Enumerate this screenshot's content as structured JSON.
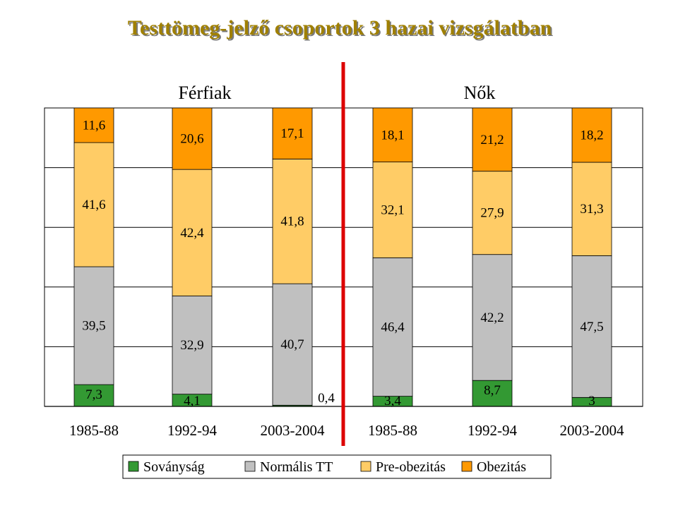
{
  "chart_data": {
    "type": "bar",
    "stacked": true,
    "title": "Testtömeg-jelző csoportok 3 hazai vizsgálatban",
    "groups": [
      "Férfiak",
      "Nők"
    ],
    "categories": [
      "1985-88",
      "1992-94",
      "2003-2004",
      "1985-88",
      "1992-94",
      "2003-2004"
    ],
    "series": [
      {
        "name": "Soványság",
        "color": "#339933",
        "values": [
          7.3,
          4.1,
          0.4,
          3.4,
          8.7,
          3
        ]
      },
      {
        "name": "Normális TT",
        "color": "#c0c0c0",
        "values": [
          39.5,
          32.9,
          40.7,
          46.4,
          42.2,
          47.5
        ]
      },
      {
        "name": "Pre-obezitás",
        "color": "#ffcc66",
        "values": [
          41.6,
          42.4,
          41.8,
          32.1,
          27.9,
          31.3
        ]
      },
      {
        "name": "Obezitás",
        "color": "#ff9900",
        "values": [
          11.6,
          20.6,
          17.1,
          18.1,
          21.2,
          18.2
        ]
      }
    ],
    "value_labels": [
      [
        "7,3",
        "4,1",
        "0,4",
        "3,4",
        "8,7",
        "3"
      ],
      [
        "39,5",
        "32,9",
        "40,7",
        "46,4",
        "42,2",
        "47,5"
      ],
      [
        "41,6",
        "42,4",
        "41,8",
        "32,1",
        "27,9",
        "31,3"
      ],
      [
        "11,6",
        "20,6",
        "17,1",
        "18,1",
        "21,2",
        "18,2"
      ]
    ],
    "ylim": [
      0,
      100
    ],
    "grid": true,
    "divider_color": "#dd0000",
    "legend_position": "bottom"
  }
}
